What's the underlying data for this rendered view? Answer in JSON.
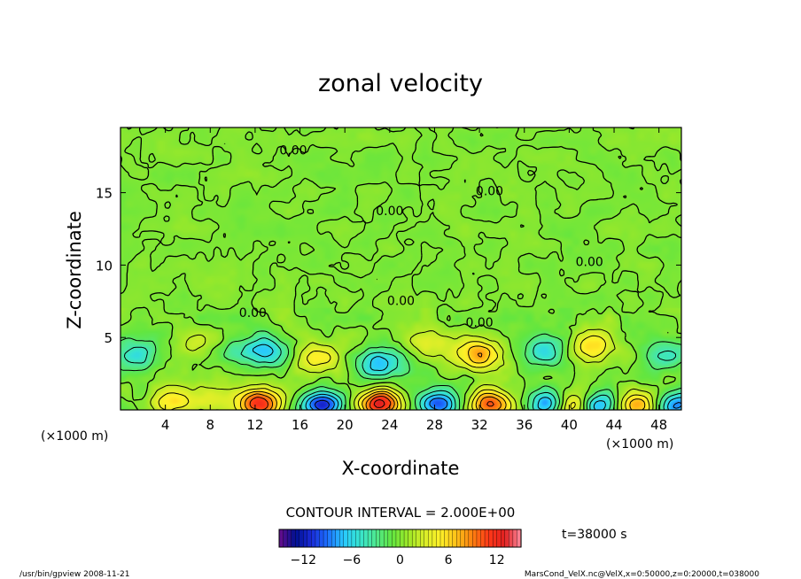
{
  "chart_data": {
    "type": "heatmap",
    "title": "zonal velocity",
    "xlabel": "X-coordinate",
    "ylabel": "Z-coordinate",
    "x_unit": "(×1000 m)",
    "y_unit": "(×1000 m)",
    "xlim": [
      0,
      50
    ],
    "ylim": [
      0,
      19.5
    ],
    "x_ticks": [
      "4",
      "8",
      "12",
      "16",
      "20",
      "24",
      "28",
      "32",
      "36",
      "40",
      "44",
      "48"
    ],
    "y_ticks": [
      "5",
      "10",
      "15"
    ],
    "contour_labels": [
      {
        "text": "0.00",
        "x": 15.4,
        "y": 18.0
      },
      {
        "text": "0.00",
        "x": 24.0,
        "y": 13.8
      },
      {
        "text": "0.00",
        "x": 32.9,
        "y": 15.2
      },
      {
        "text": "0.00",
        "x": 41.8,
        "y": 10.3
      },
      {
        "text": "0.00",
        "x": 11.8,
        "y": 6.8
      },
      {
        "text": "0.00",
        "x": 25.0,
        "y": 7.6
      },
      {
        "text": "0.00",
        "x": 32.0,
        "y": 6.1
      }
    ],
    "contour_interval_label": "CONTOUR INTERVAL = 2.000E+00",
    "colorbar": {
      "ticks": [
        "−12",
        "−6",
        "0",
        "6",
        "12"
      ],
      "tick_values": [
        -12,
        -6,
        0,
        6,
        12
      ],
      "range": [
        -15,
        15
      ],
      "colors": [
        "#6a0c8c",
        "#001090",
        "#1a2ad8",
        "#1c70ff",
        "#28c8ff",
        "#37e4d0",
        "#4ee890",
        "#62e640",
        "#9ee828",
        "#d8ee28",
        "#fff028",
        "#ffc018",
        "#ff8010",
        "#ff3818",
        "#e02020",
        "#ff8ca0"
      ]
    },
    "eddies": [
      {
        "x": 1.4,
        "z": 3.8,
        "u": -5
      },
      {
        "x": 7.0,
        "z": 4.6,
        "u": 3
      },
      {
        "x": 10.4,
        "z": 4.2,
        "u": -3
      },
      {
        "x": 13.1,
        "z": 4.0,
        "u": -6
      },
      {
        "x": 17.7,
        "z": 3.5,
        "u": 5
      },
      {
        "x": 23.1,
        "z": 3.2,
        "u": -8
      },
      {
        "x": 27.5,
        "z": 4.5,
        "u": 3
      },
      {
        "x": 31.8,
        "z": 3.8,
        "u": 8
      },
      {
        "x": 37.8,
        "z": 4.0,
        "u": -6
      },
      {
        "x": 42.2,
        "z": 4.5,
        "u": 6
      },
      {
        "x": 48.6,
        "z": 3.8,
        "u": -5
      },
      {
        "x": 12.4,
        "z": 0.4,
        "u": 12
      },
      {
        "x": 18.0,
        "z": 0.4,
        "u": -11
      },
      {
        "x": 23.1,
        "z": 0.4,
        "u": 13
      },
      {
        "x": 28.2,
        "z": 0.4,
        "u": -10
      },
      {
        "x": 33.0,
        "z": 0.4,
        "u": 10
      },
      {
        "x": 38.2,
        "z": 0.4,
        "u": -9
      },
      {
        "x": 40.3,
        "z": 0.3,
        "u": 9
      },
      {
        "x": 42.6,
        "z": 0.3,
        "u": -9
      },
      {
        "x": 46.0,
        "z": 0.3,
        "u": 8
      },
      {
        "x": 49.6,
        "z": 0.3,
        "u": -8
      },
      {
        "x": 4.6,
        "z": 0.6,
        "u": 5
      },
      {
        "x": 8.4,
        "z": 0.8,
        "u": 3
      }
    ]
  },
  "footer": {
    "time": "t=38000 s",
    "left": "/usr/bin/gpview 2008-11-21",
    "right": "MarsCond_VelX.nc@VelX,x=0:50000,z=0:20000,t=038000"
  }
}
